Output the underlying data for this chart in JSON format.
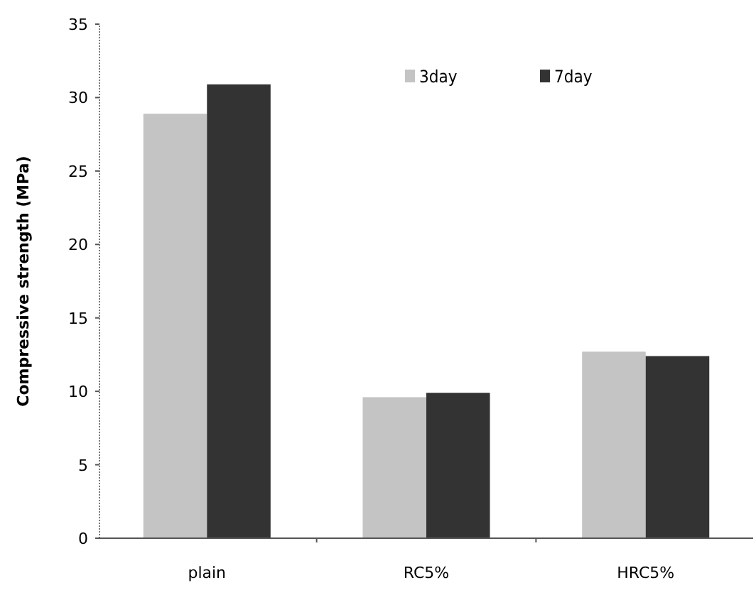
{
  "chart_data": {
    "type": "bar",
    "ylabel": "Compressive strength (MPa)",
    "categories": [
      "plain",
      "RC5%",
      "HRC5%"
    ],
    "series": [
      {
        "name": "3day",
        "color": "#c4c4c4",
        "values": [
          28.9,
          9.6,
          12.7
        ]
      },
      {
        "name": "7day",
        "color": "#333333",
        "values": [
          30.9,
          9.9,
          12.4
        ]
      }
    ],
    "ylim": [
      0,
      35
    ],
    "yticks": [
      0,
      5,
      10,
      15,
      20,
      25,
      30,
      35
    ],
    "legend": "top right",
    "grid": false
  }
}
